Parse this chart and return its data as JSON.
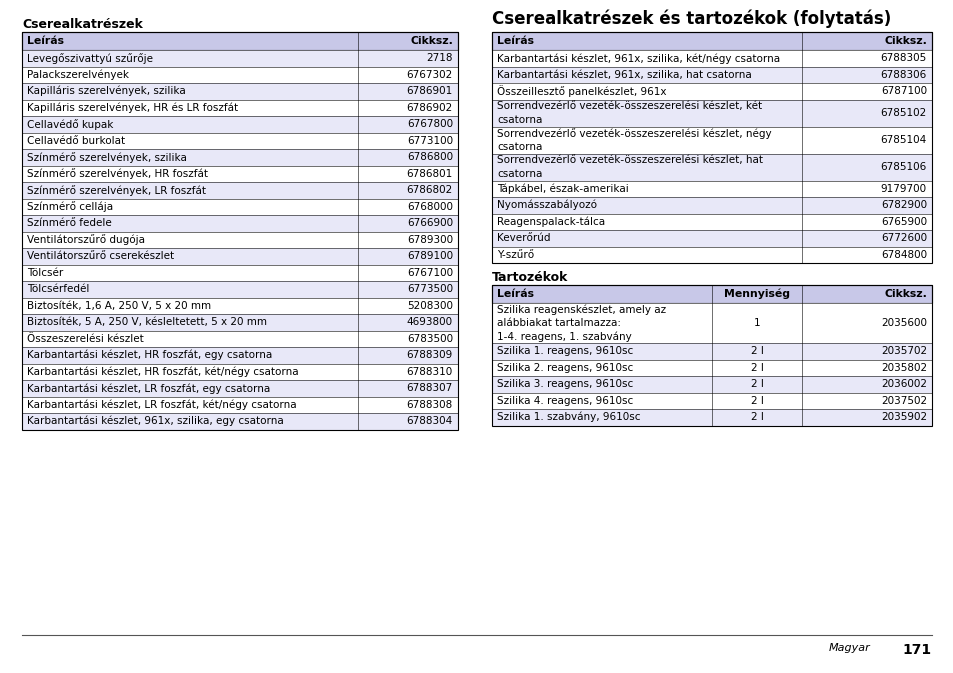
{
  "bg_color": "#ffffff",
  "left_title": "Cserealkatrészek",
  "right_title": "Cserealkatrészek és tartozékok (folytatás)",
  "left_table_header": [
    "Leírás",
    "Cikksz."
  ],
  "left_table_rows": [
    [
      "Levegőszivattyú szűrője",
      "2718"
    ],
    [
      "Palackszerelvények",
      "6767302"
    ],
    [
      "Kapilláris szerelvények, szilika",
      "6786901"
    ],
    [
      "Kapilláris szerelvények, HR és LR foszfát",
      "6786902"
    ],
    [
      "Cellavédő kupak",
      "6767800"
    ],
    [
      "Cellavédő burkolat",
      "6773100"
    ],
    [
      "Színmérő szerelvények, szilika",
      "6786800"
    ],
    [
      "Színmérő szerelvények, HR foszfát",
      "6786801"
    ],
    [
      "Színmérő szerelvények, LR foszfát",
      "6786802"
    ],
    [
      "Színmérő cellája",
      "6768000"
    ],
    [
      "Színmérő fedele",
      "6766900"
    ],
    [
      "Ventilátorszűrő dugója",
      "6789300"
    ],
    [
      "Ventilátorszűrő cserekészlet",
      "6789100"
    ],
    [
      "Tölcsér",
      "6767100"
    ],
    [
      "Tölcsérfedél",
      "6773500"
    ],
    [
      "Biztosíték, 1,6 A, 250 V, 5 x 20 mm",
      "5208300"
    ],
    [
      "Biztosíték, 5 A, 250 V, késleltetett, 5 x 20 mm",
      "4693800"
    ],
    [
      "Összeszerelési készlet",
      "6783500"
    ],
    [
      "Karbantartási készlet, HR foszfát, egy csatorna",
      "6788309"
    ],
    [
      "Karbantartási készlet, HR foszfát, két/négy csatorna",
      "6788310"
    ],
    [
      "Karbantartási készlet, LR foszfát, egy csatorna",
      "6788307"
    ],
    [
      "Karbantartási készlet, LR foszfát, két/négy csatorna",
      "6788308"
    ],
    [
      "Karbantartási készlet, 961x, szilika, egy csatorna",
      "6788304"
    ]
  ],
  "right_table1_header": [
    "Leírás",
    "Cikksz."
  ],
  "right_table1_rows": [
    [
      "Karbantartási készlet, 961x, szilika, két/négy csatorna",
      "6788305"
    ],
    [
      "Karbantartási készlet, 961x, szilika, hat csatorna",
      "6788306"
    ],
    [
      "Összeillesztő panelkészlet, 961x",
      "6787100"
    ],
    [
      "Sorrendvezérlő vezeték-összeszerelési készlet, két\ncsatorna",
      "6785102"
    ],
    [
      "Sorrendvezérlő vezeték-összeszerelési készlet, négy\ncsatorna",
      "6785104"
    ],
    [
      "Sorrendvezérlő vezeték-összeszerelési készlet, hat\ncsatorna",
      "6785106"
    ],
    [
      "Tápkábel, észak-amerikai",
      "9179700"
    ],
    [
      "Nyomásszabályozó",
      "6782900"
    ],
    [
      "Reagenspalack-tálca",
      "6765900"
    ],
    [
      "Keverőrúd",
      "6772600"
    ],
    [
      "Y-szűrő",
      "6784800"
    ]
  ],
  "right_table2_title": "Tartozékok",
  "right_table2_header": [
    "Leírás",
    "Mennyiség",
    "Cikksz."
  ],
  "right_table2_rows": [
    [
      "Szilika reagenskészlet, amely az\nalábbiakat tartalmazza:\n1-4. reagens, 1. szabvány",
      "1",
      "2035600"
    ],
    [
      "Szilika 1. reagens, 9610sc",
      "2 l",
      "2035702"
    ],
    [
      "Szilika 2. reagens, 9610sc",
      "2 l",
      "2035802"
    ],
    [
      "Szilika 3. reagens, 9610sc",
      "2 l",
      "2036002"
    ],
    [
      "Szilika 4. reagens, 9610sc",
      "2 l",
      "2037502"
    ],
    [
      "Szilika 1. szabvány, 9610sc",
      "2 l",
      "2035902"
    ]
  ],
  "footer_text": "Magyar",
  "footer_page": "171",
  "header_color": "#c8c8e8",
  "alt_row_color": "#e8e8f8",
  "white_row_color": "#ffffff",
  "border_color": "#000000",
  "text_color": "#000000",
  "font_size": 7.5,
  "header_font_size": 7.8
}
